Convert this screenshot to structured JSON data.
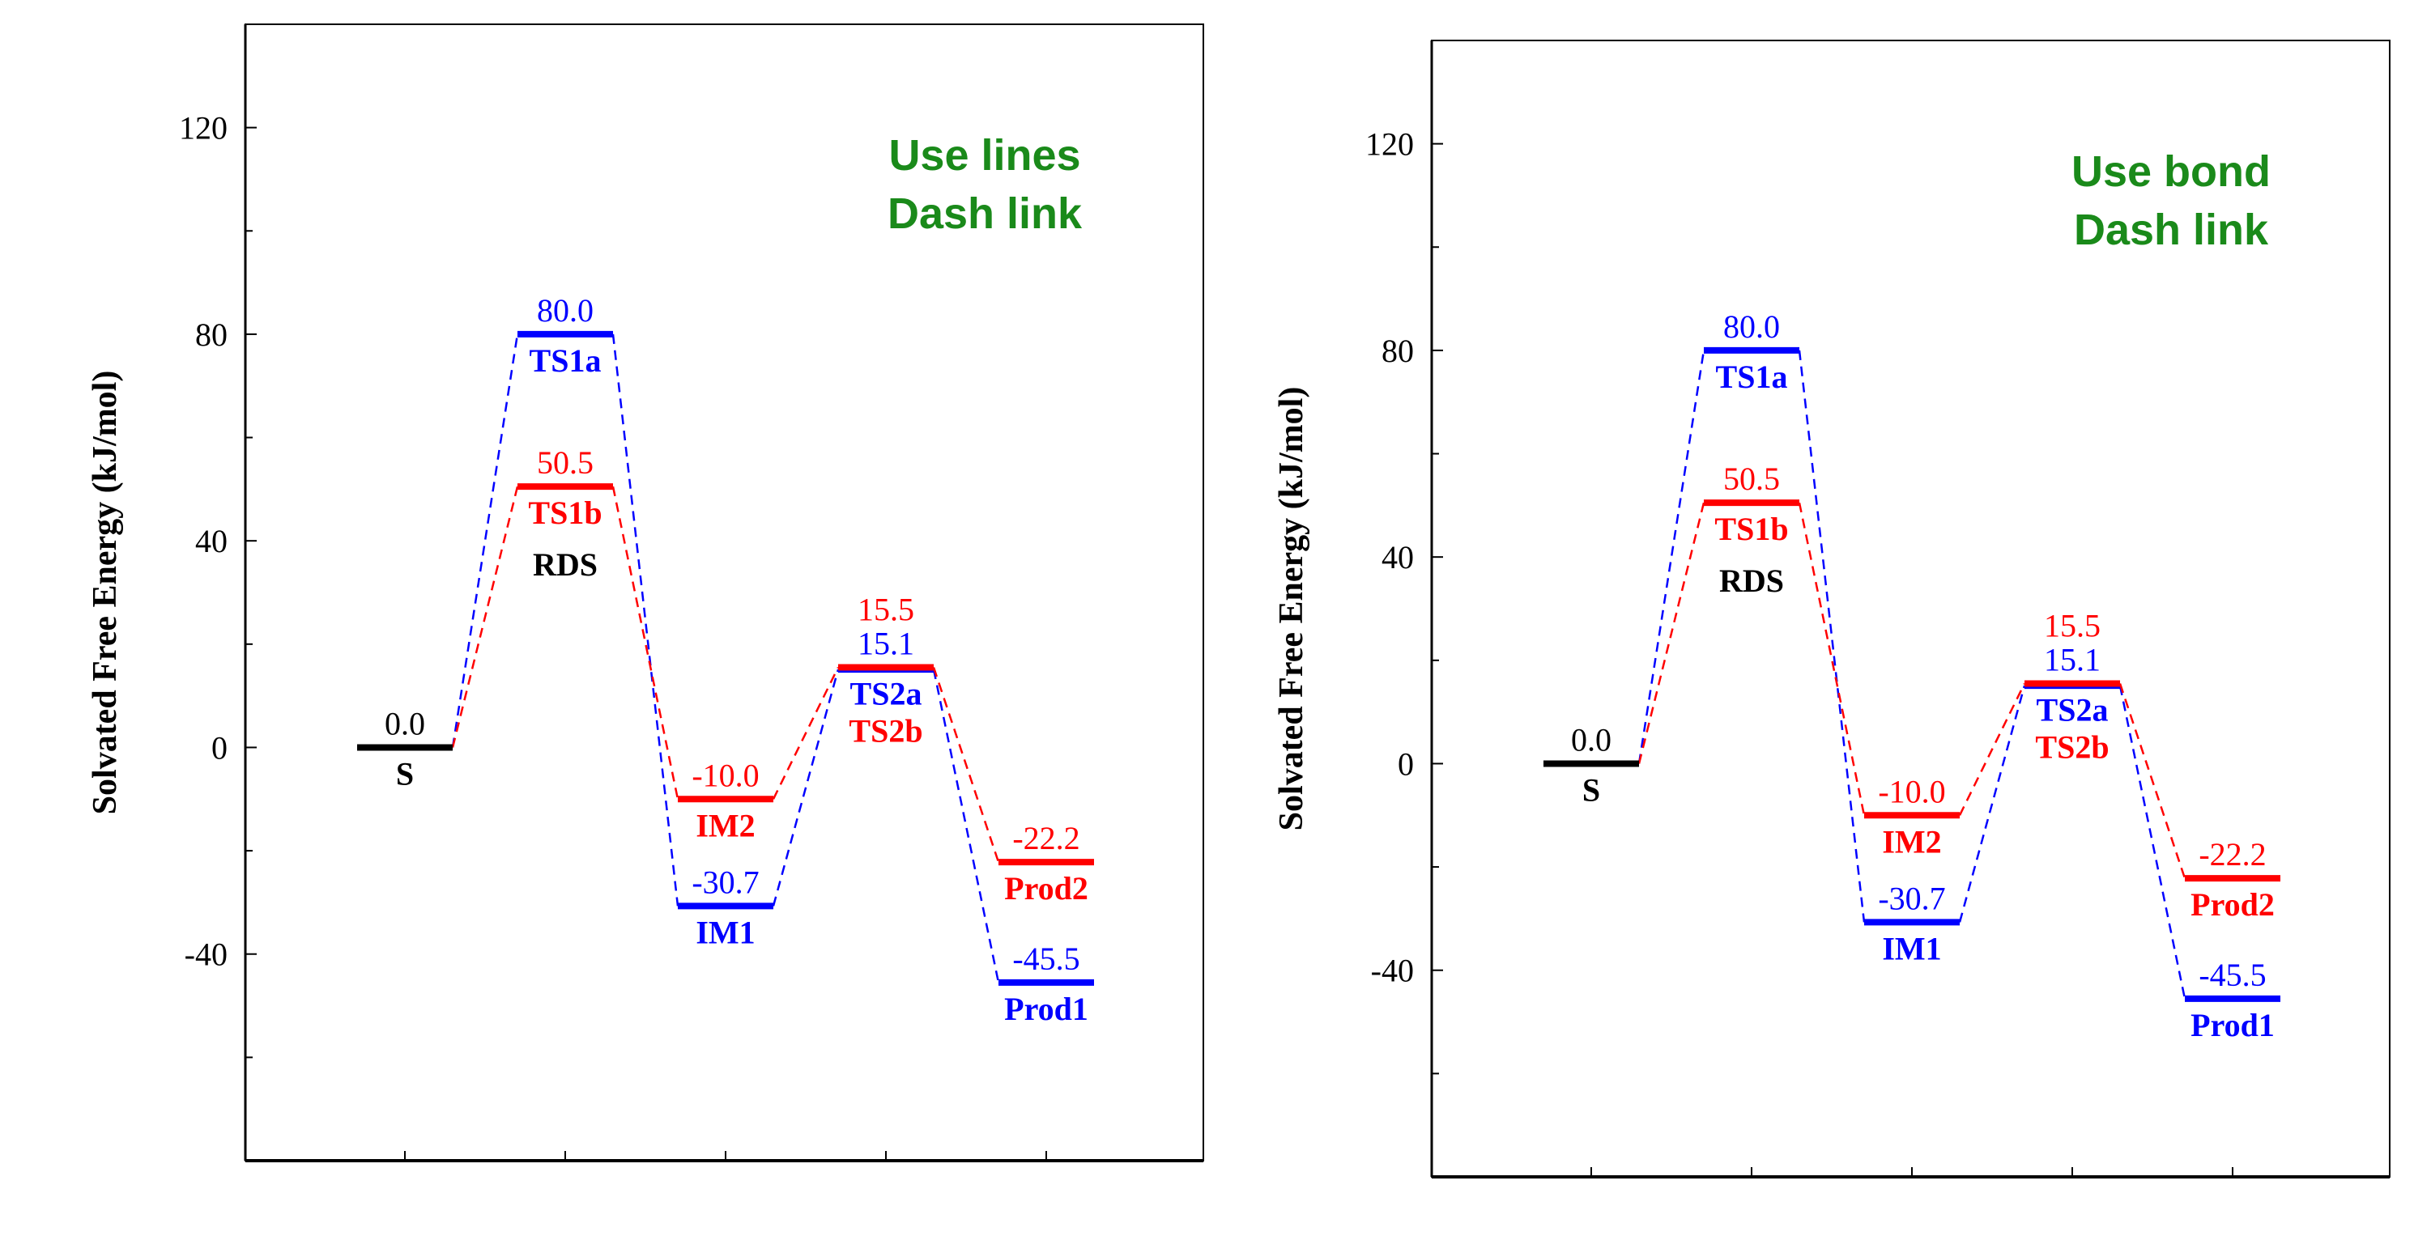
{
  "chart_data": [
    {
      "type": "line",
      "subtype": "energy-profile",
      "annotation": [
        "Use lines",
        "Dash link"
      ],
      "ylabel": "Solvated Free Energy (kJ/mol)",
      "ylim": [
        -80,
        140
      ],
      "yticks": [
        -40,
        0,
        40,
        80,
        120
      ],
      "grid": false,
      "colors": {
        "S": "#000000",
        "a": "#0000ff",
        "b": "#ff0000",
        "annotation": "#1a8a1a",
        "rds": "#000000"
      },
      "start": {
        "name": "S",
        "x": 1,
        "value": 0.0,
        "value_label": "0.0"
      },
      "rds_label": "RDS",
      "series": [
        {
          "key": "a",
          "points": [
            {
              "name": "TS1a",
              "x": 2,
              "value": 80.0,
              "value_label": "80.0"
            },
            {
              "name": "IM1",
              "x": 3,
              "value": -30.7,
              "value_label": "-30.7"
            },
            {
              "name": "TS2a",
              "x": 4,
              "value": 15.1,
              "value_label": "15.1"
            },
            {
              "name": "Prod1",
              "x": 5,
              "value": -45.5,
              "value_label": "-45.5"
            }
          ]
        },
        {
          "key": "b",
          "points": [
            {
              "name": "TS1b",
              "x": 2,
              "value": 50.5,
              "value_label": "50.5"
            },
            {
              "name": "IM2",
              "x": 3,
              "value": -10.0,
              "value_label": "-10.0"
            },
            {
              "name": "TS2b",
              "x": 4,
              "value": 15.5,
              "value_label": "15.5"
            },
            {
              "name": "Prod2",
              "x": 5,
              "value": -22.2,
              "value_label": "-22.2"
            }
          ]
        }
      ]
    },
    {
      "type": "line",
      "subtype": "energy-profile",
      "annotation": [
        "Use bond",
        "Dash link"
      ],
      "ylabel": "Solvated Free Energy (kJ/mol)",
      "ylim": [
        -80,
        140
      ],
      "yticks": [
        -40,
        0,
        40,
        80,
        120
      ],
      "grid": false,
      "colors": {
        "S": "#000000",
        "a": "#0000ff",
        "b": "#ff0000",
        "annotation": "#1a8a1a",
        "rds": "#000000"
      },
      "start": {
        "name": "S",
        "x": 1,
        "value": 0.0,
        "value_label": "0.0"
      },
      "rds_label": "RDS",
      "series": [
        {
          "key": "a",
          "points": [
            {
              "name": "TS1a",
              "x": 2,
              "value": 80.0,
              "value_label": "80.0"
            },
            {
              "name": "IM1",
              "x": 3,
              "value": -30.7,
              "value_label": "-30.7"
            },
            {
              "name": "TS2a",
              "x": 4,
              "value": 15.1,
              "value_label": "15.1"
            },
            {
              "name": "Prod1",
              "x": 5,
              "value": -45.5,
              "value_label": "-45.5"
            }
          ]
        },
        {
          "key": "b",
          "points": [
            {
              "name": "TS1b",
              "x": 2,
              "value": 50.5,
              "value_label": "50.5"
            },
            {
              "name": "IM2",
              "x": 3,
              "value": -10.0,
              "value_label": "-10.0"
            },
            {
              "name": "TS2b",
              "x": 4,
              "value": 15.5,
              "value_label": "15.5"
            },
            {
              "name": "Prod2",
              "x": 5,
              "value": -22.2,
              "value_label": "-22.2"
            }
          ]
        }
      ]
    }
  ]
}
